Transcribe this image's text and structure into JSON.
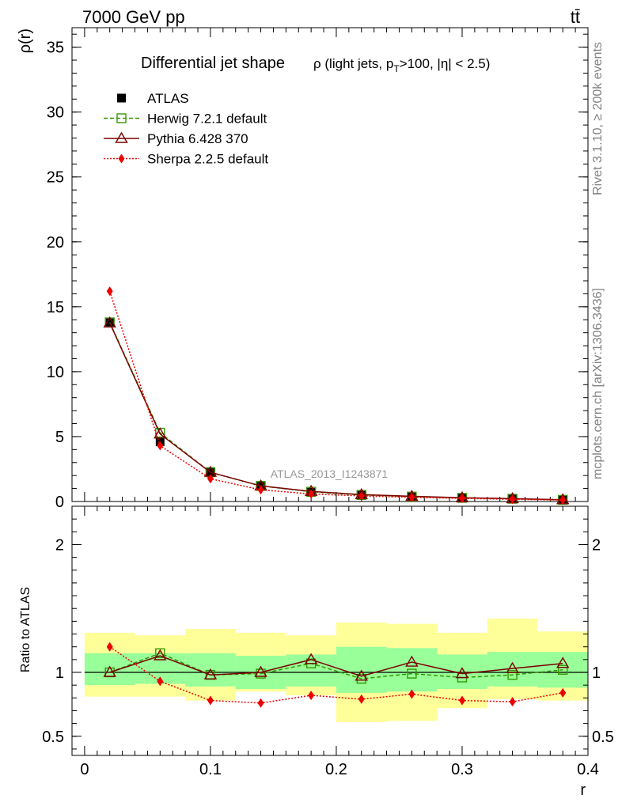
{
  "header": {
    "left": "7000 GeV pp",
    "right": "tt̄"
  },
  "side_labels": {
    "rivet": "Rivet 3.1.10, ≥ 200k events",
    "mcplots": "mcplots.cern.ch [arXiv:1306.3436]"
  },
  "chart_data": [
    {
      "type": "line",
      "title": "Differential jet shape",
      "title_sub": "ρ (light jets, p_T>100, |η| < 2.5)",
      "ylabel": "ρ(r)",
      "xlabel": "",
      "watermark": "ATLAS_2013_I1243871",
      "xlim": [
        -0.01,
        0.4
      ],
      "ylim": [
        0,
        36.5
      ],
      "y_ticks": [
        0,
        5,
        10,
        15,
        20,
        25,
        30,
        35
      ],
      "legend_position": "top-left",
      "x": [
        0.02,
        0.06,
        0.1,
        0.14,
        0.18,
        0.22,
        0.26,
        0.3,
        0.34,
        0.38
      ],
      "series": [
        {
          "name": "ATLAS",
          "color": "#000000",
          "marker": "square-filled",
          "line": "none",
          "values": [
            13.8,
            4.6,
            2.3,
            1.2,
            0.7,
            0.55,
            0.38,
            0.3,
            0.22,
            0.13
          ]
        },
        {
          "name": "Herwig 7.2.1 default",
          "color": "#339900",
          "marker": "square-open",
          "line": "dashed",
          "values": [
            13.8,
            5.3,
            2.25,
            1.2,
            0.75,
            0.5,
            0.38,
            0.28,
            0.21,
            0.13
          ]
        },
        {
          "name": "Pythia 6.428 370",
          "color": "#7a0000",
          "marker": "triangle-open",
          "line": "solid",
          "values": [
            13.75,
            5.2,
            2.25,
            1.2,
            0.78,
            0.53,
            0.4,
            0.29,
            0.22,
            0.14
          ]
        },
        {
          "name": "Sherpa 2.2.5 default",
          "color": "#ee0000",
          "marker": "diamond-filled",
          "line": "dotted",
          "values": [
            16.2,
            4.3,
            1.75,
            0.9,
            0.58,
            0.43,
            0.32,
            0.24,
            0.17,
            0.11
          ]
        }
      ]
    },
    {
      "type": "line",
      "ylabel": "Ratio to ATLAS",
      "xlabel": "r",
      "xlim": [
        -0.01,
        0.4
      ],
      "ylim": [
        0.35,
        2.3
      ],
      "y_ticks": [
        0.5,
        1,
        2
      ],
      "x_ticks": [
        0,
        0.1,
        0.2,
        0.3,
        0.4
      ],
      "x_tick_labels": [
        "0",
        "0.1",
        "0.2",
        "0.3",
        "0.4"
      ],
      "bin_edges": [
        0.0,
        0.04,
        0.08,
        0.12,
        0.16,
        0.2,
        0.24,
        0.28,
        0.32,
        0.36,
        0.4
      ],
      "band_inner": [
        [
          0.9,
          1.15
        ],
        [
          0.91,
          1.15
        ],
        [
          0.89,
          1.15
        ],
        [
          0.87,
          1.13
        ],
        [
          0.89,
          1.14
        ],
        [
          0.84,
          1.2
        ],
        [
          0.85,
          1.19
        ],
        [
          0.87,
          1.14
        ],
        [
          0.89,
          1.16
        ],
        [
          0.88,
          1.16
        ]
      ],
      "band_outer": [
        [
          0.81,
          1.31
        ],
        [
          0.81,
          1.29
        ],
        [
          0.78,
          1.34
        ],
        [
          0.85,
          1.31
        ],
        [
          0.82,
          1.29
        ],
        [
          0.61,
          1.39
        ],
        [
          0.62,
          1.38
        ],
        [
          0.72,
          1.31
        ],
        [
          0.79,
          1.42
        ],
        [
          0.78,
          1.32
        ]
      ],
      "x": [
        0.02,
        0.06,
        0.1,
        0.14,
        0.18,
        0.22,
        0.26,
        0.3,
        0.34,
        0.38
      ],
      "series": [
        {
          "name": "Herwig 7.2.1 default",
          "color": "#339900",
          "marker": "square-open",
          "line": "dashed",
          "values": [
            1.0,
            1.15,
            0.98,
            0.99,
            1.07,
            0.95,
            0.99,
            0.96,
            0.98,
            1.02
          ]
        },
        {
          "name": "Pythia 6.428 370",
          "color": "#7a0000",
          "marker": "triangle-open",
          "line": "solid",
          "values": [
            1.0,
            1.13,
            0.98,
            1.0,
            1.1,
            0.97,
            1.08,
            0.99,
            1.03,
            1.07
          ]
        },
        {
          "name": "Sherpa 2.2.5 default",
          "color": "#ee0000",
          "marker": "diamond-filled",
          "line": "dotted",
          "values": [
            1.2,
            0.93,
            0.78,
            0.76,
            0.82,
            0.79,
            0.83,
            0.78,
            0.77,
            0.84
          ]
        }
      ]
    }
  ]
}
